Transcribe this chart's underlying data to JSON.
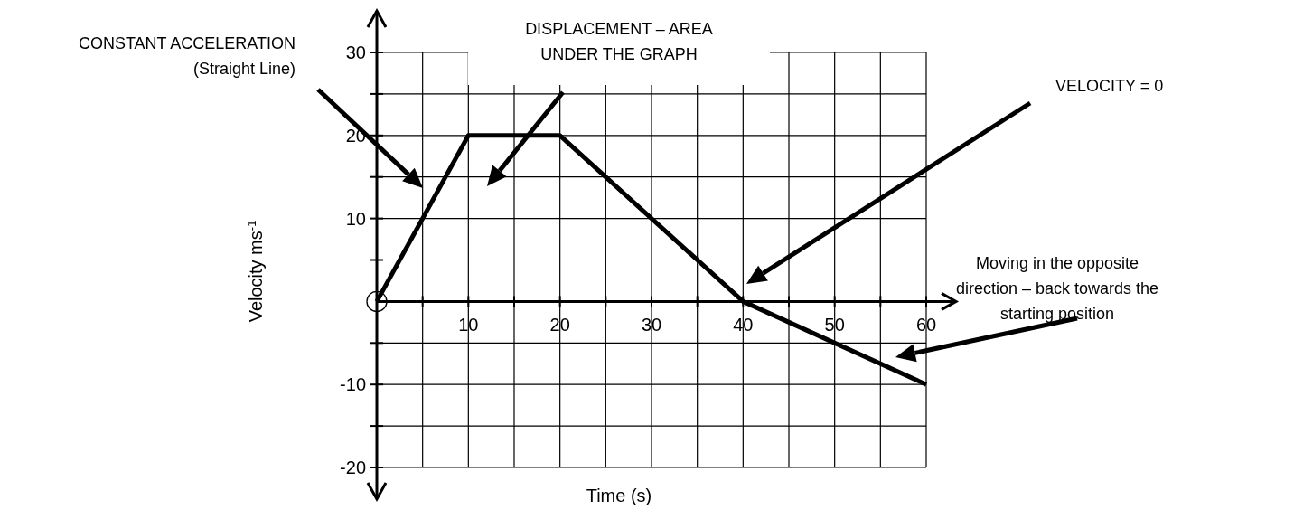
{
  "chart_data": {
    "type": "line",
    "xlabel": "Time (s)",
    "ylabel": "Velocity ms$^{-1}$",
    "xlim": [
      0,
      60
    ],
    "ylim": [
      -20,
      30
    ],
    "xticks": [
      {
        "value": 5,
        "label": null
      },
      10,
      {
        "value": 15,
        "label": null
      },
      20,
      {
        "value": 25,
        "label": null
      },
      30,
      {
        "value": 35,
        "label": null
      },
      40,
      {
        "value": 45,
        "label": null
      },
      50,
      {
        "value": 55,
        "label": null
      },
      60
    ],
    "yticks": [
      -20,
      {
        "value": -15,
        "label": null
      },
      -10,
      {
        "value": -5,
        "label": null
      },
      {
        "value": 5,
        "label": null
      },
      10,
      {
        "value": 15,
        "label": null
      },
      20,
      {
        "value": 25,
        "label": null
      },
      30
    ],
    "grid": true,
    "marker": "none",
    "line_style": "solid",
    "series": [
      {
        "color": "#000000",
        "x": [
          0,
          10,
          20,
          40,
          60
        ],
        "values": [
          0,
          20,
          20,
          0,
          -10
        ]
      }
    ],
    "annotations": [
      "CONSTANT ACCELERATION\n(Straight Line)",
      "DISPLACEMENT – AREA\nUNDER THE GRAPH",
      "VELOCITY = 0",
      "Moving in the opposite\ndirection – back towards the\nstarting position"
    ]
  }
}
